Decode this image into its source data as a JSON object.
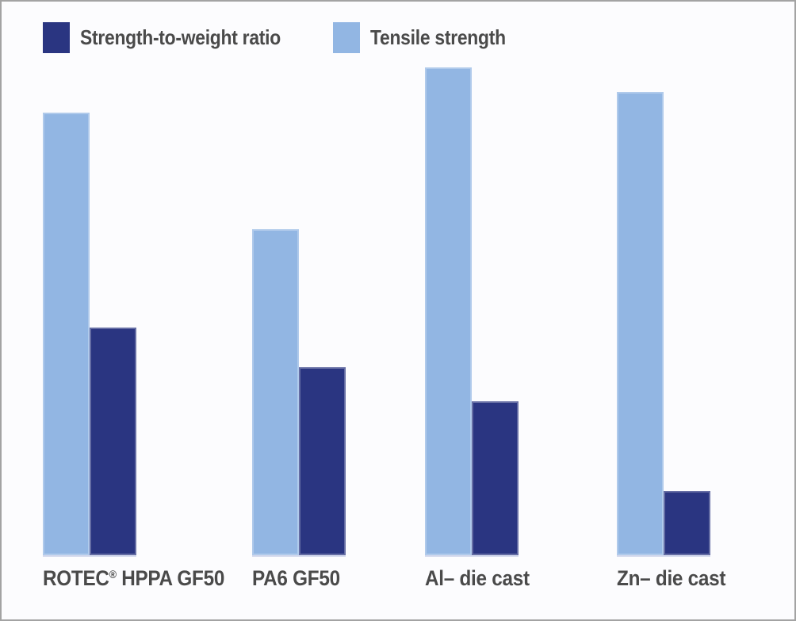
{
  "chart_data": {
    "type": "bar",
    "title": "",
    "xlabel": "",
    "ylabel": "",
    "categories": [
      "ROTEC® HPPA GF50",
      "PA6 GF50",
      "Al– die cast",
      "Zn– die cast"
    ],
    "series": [
      {
        "name": "Strength-to-weight ratio",
        "color": "#2A3581",
        "values": [
          46.7,
          38.5,
          31.5,
          13.2
        ]
      },
      {
        "name": "Tensile strength",
        "color": "#92B6E3",
        "values": [
          90.7,
          66.8,
          100,
          95.0
        ]
      }
    ],
    "group_bar_order": [
      "Tensile strength",
      "Strength-to-weight ratio"
    ],
    "value_scale": "relative units; tallest bar (Al– die cast tensile strength) = 100; no numeric axis shown in chart",
    "ylim": [
      0,
      100
    ],
    "gridlines": false,
    "y_axis_visible": false,
    "legend": {
      "position": "top-left",
      "entries": [
        "Strength-to-weight ratio",
        "Tensile strength"
      ]
    }
  },
  "colors": {
    "strength_to_weight_ratio": "#2A3581",
    "tensile_strength": "#92B6E3",
    "label_text": "#4A4A4A",
    "background": "#FCFCFE",
    "frame_border": "#A3A3A3"
  }
}
